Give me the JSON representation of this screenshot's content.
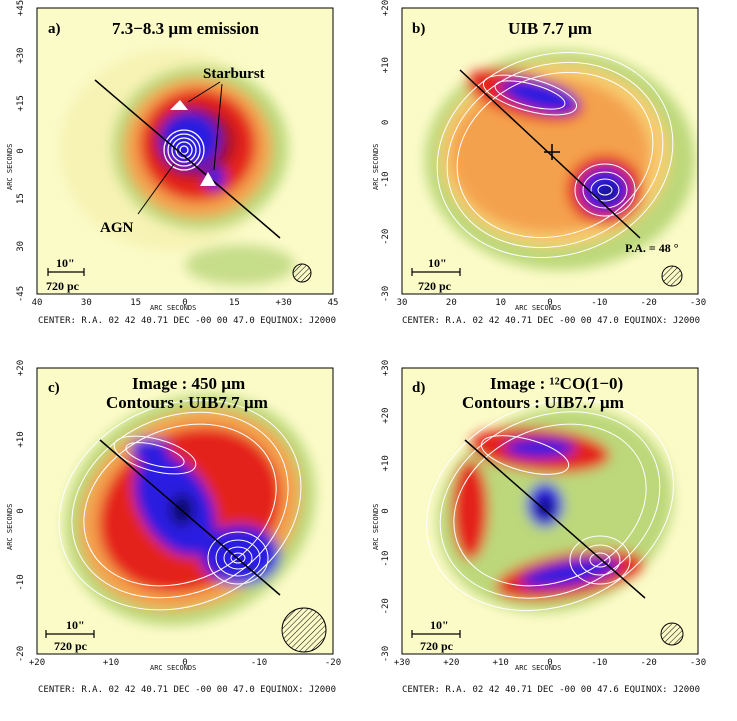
{
  "panels": [
    {
      "letter": "a)",
      "title_line1": "7.3−8.3 µm  emission",
      "title_line2": "",
      "annotations": [
        "Starburst",
        "AGN"
      ],
      "pa_label": "",
      "scale_arcsec": "10\"",
      "scale_pc": "720 pc",
      "xticks": [
        "40",
        "30",
        "15",
        "0",
        "15",
        "+30",
        "45"
      ],
      "yticks": [
        "+45",
        "+30",
        "+15",
        "0",
        "15",
        "30",
        "-45"
      ],
      "xaxis_label": "ARC SECONDS",
      "yaxis_label": "ARC SECONDS",
      "center": "CENTER: R.A. 02 42 40.71 DEC  -00 00 47.0   EQUINOX: J2000"
    },
    {
      "letter": "b)",
      "title_line1": "UIB  7.7 µm",
      "title_line2": "",
      "annotations": [],
      "pa_label": "P.A. = 48 °",
      "scale_arcsec": "10\"",
      "scale_pc": "720 pc",
      "xticks": [
        "30",
        "20",
        "10",
        "0",
        "-10",
        "-20",
        "-30"
      ],
      "yticks": [
        "+20",
        "+10",
        "0",
        "-10",
        "-20",
        "-30"
      ],
      "xaxis_label": "ARC SECONDS",
      "yaxis_label": "ARC SECONDS",
      "center": "CENTER: R.A. 02 42 40.71 DEC  -00 00 47.0   EQUINOX: J2000"
    },
    {
      "letter": "c)",
      "title_line1": "Image : 450 µm",
      "title_line2": "Contours : UIB7.7 µm",
      "annotations": [],
      "pa_label": "",
      "scale_arcsec": "10\"",
      "scale_pc": "720 pc",
      "xticks": [
        "+20",
        "+10",
        "0",
        "-10",
        "-20"
      ],
      "yticks": [
        "+20",
        "+10",
        "0",
        "-10",
        "-20"
      ],
      "xaxis_label": "ARC SECONDS",
      "yaxis_label": "ARC SECONDS",
      "center": "CENTER: R.A. 02 42 40.71 DEC  -00 00 47.0   EQUINOX: J2000"
    },
    {
      "letter": "d)",
      "title_line1": "Image : ¹²CO(1−0)",
      "title_line2": "Contours : UIB7.7 µm",
      "annotations": [],
      "pa_label": "",
      "scale_arcsec": "10\"",
      "scale_pc": "720 pc",
      "xticks": [
        "+30",
        "+20",
        "+10",
        "0",
        "-10",
        "-20",
        "-30"
      ],
      "yticks": [
        "+30",
        "+20",
        "+10",
        "0",
        "-10",
        "-20",
        "-30"
      ],
      "xaxis_label": "ARC SECONDS",
      "yaxis_label": "ARC SECONDS",
      "center": "CENTER: R.A. 02 42 40.71 DEC  -00 00 47.6   EQUINOX: J2000"
    }
  ],
  "colors": {
    "background_yellow": "#fbfbc8",
    "green": "#bcd87a",
    "orange": "#f4a14d",
    "red": "#e4231b",
    "darkred": "#a0102a",
    "blue": "#2a1fe0",
    "darkblue": "#10106a"
  }
}
